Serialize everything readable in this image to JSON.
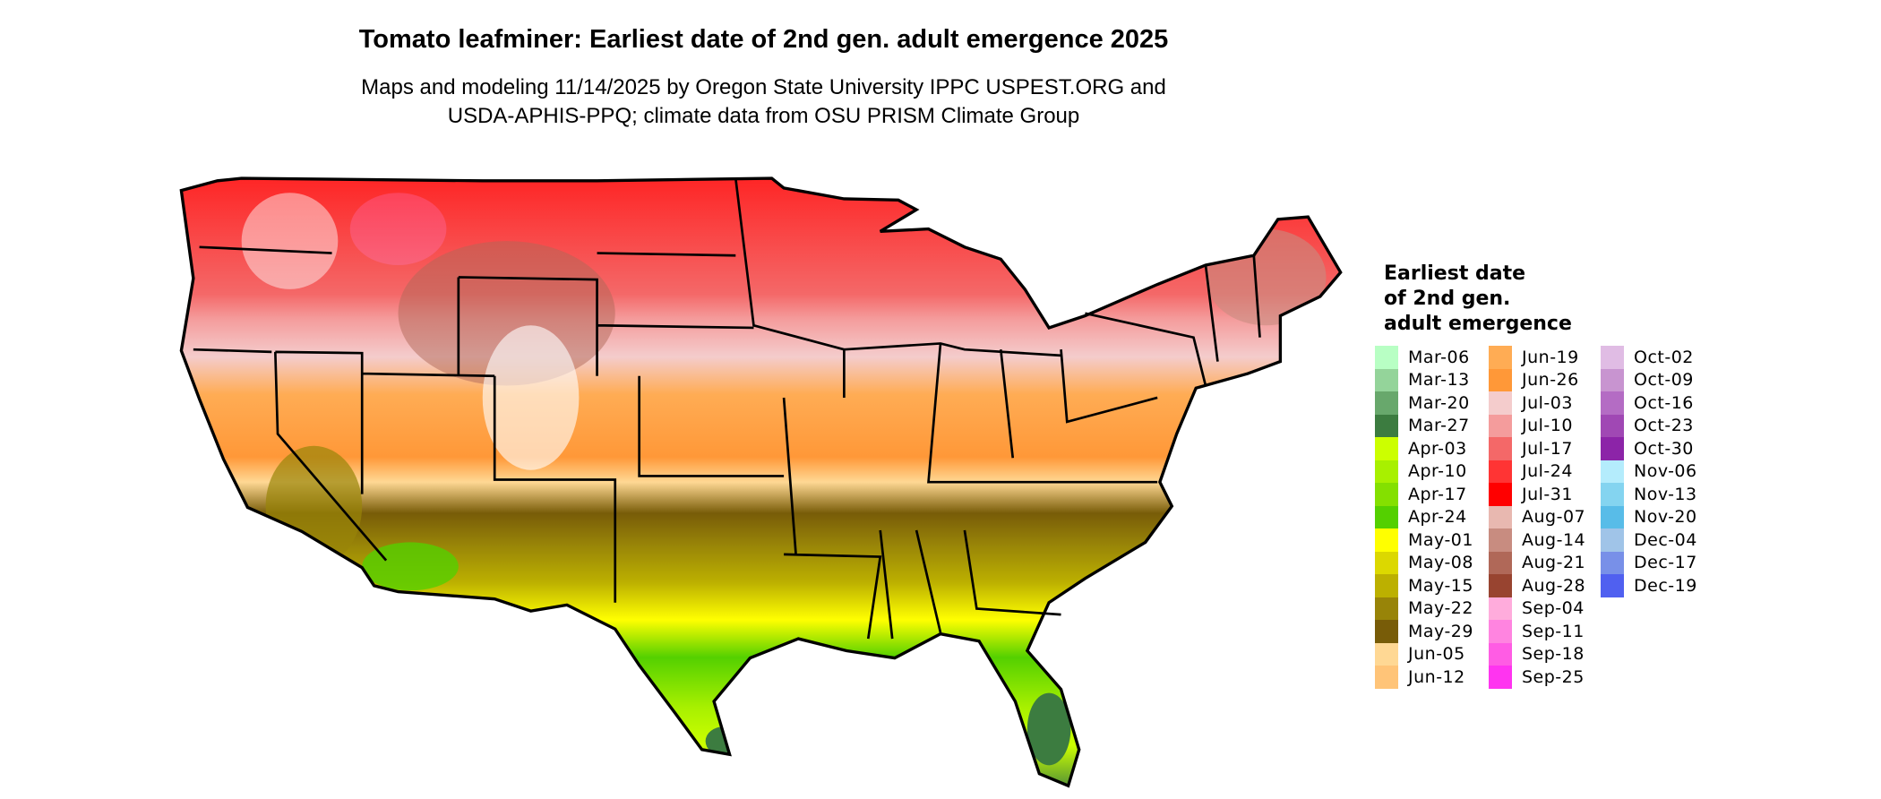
{
  "title": "Tomato leafminer: Earliest date of 2nd gen. adult emergence 2025",
  "subtitle_line1": "Maps and modeling 11/14/2025 by Oregon State University IPPC USPEST.ORG and",
  "subtitle_line2": "USDA-APHIS-PPQ; climate data from OSU PRISM Climate Group",
  "legend": {
    "title_lines": [
      "Earliest date",
      "of 2nd gen.",
      "adult emergence"
    ],
    "columns": [
      [
        {
          "label": "Mar-06",
          "color": "#b8ffc4"
        },
        {
          "label": "Mar-13",
          "color": "#94d49a"
        },
        {
          "label": "Mar-20",
          "color": "#68a86c"
        },
        {
          "label": "Mar-27",
          "color": "#3c7c40"
        },
        {
          "label": "Apr-03",
          "color": "#ccff00"
        },
        {
          "label": "Apr-10",
          "color": "#a8f000"
        },
        {
          "label": "Apr-17",
          "color": "#84e000"
        },
        {
          "label": "Apr-24",
          "color": "#54d000"
        },
        {
          "label": "May-01",
          "color": "#ffff00"
        },
        {
          "label": "May-08",
          "color": "#dcd800"
        },
        {
          "label": "May-15",
          "color": "#bcb000"
        },
        {
          "label": "May-22",
          "color": "#988408"
        },
        {
          "label": "May-29",
          "color": "#785c08"
        },
        {
          "label": "Jun-05",
          "color": "#ffd894"
        },
        {
          "label": "Jun-12",
          "color": "#ffc478"
        }
      ],
      [
        {
          "label": "Jun-19",
          "color": "#ffac54"
        },
        {
          "label": "Jun-26",
          "color": "#ff9838"
        },
        {
          "label": "Jul-03",
          "color": "#f4cccc"
        },
        {
          "label": "Jul-10",
          "color": "#f49c9c"
        },
        {
          "label": "Jul-17",
          "color": "#f46868"
        },
        {
          "label": "Jul-24",
          "color": "#ff3434"
        },
        {
          "label": "Jul-31",
          "color": "#ff0000"
        },
        {
          "label": "Aug-07",
          "color": "#e8b8b0"
        },
        {
          "label": "Aug-14",
          "color": "#c88c80"
        },
        {
          "label": "Aug-21",
          "color": "#b06858"
        },
        {
          "label": "Aug-28",
          "color": "#984430"
        },
        {
          "label": "Sep-04",
          "color": "#ffacdc"
        },
        {
          "label": "Sep-11",
          "color": "#ff84e0"
        },
        {
          "label": "Sep-18",
          "color": "#ff5ce4"
        },
        {
          "label": "Sep-25",
          "color": "#ff34f0"
        }
      ],
      [
        {
          "label": "Oct-02",
          "color": "#e0bce4"
        },
        {
          "label": "Oct-09",
          "color": "#c894d0"
        },
        {
          "label": "Oct-16",
          "color": "#b46cc4"
        },
        {
          "label": "Oct-23",
          "color": "#a048b4"
        },
        {
          "label": "Oct-30",
          "color": "#8c24a8"
        },
        {
          "label": "Nov-06",
          "color": "#b4ecfc"
        },
        {
          "label": "Nov-13",
          "color": "#84d4f0"
        },
        {
          "label": "Nov-20",
          "color": "#58bce8"
        },
        {
          "label": "Dec-04",
          "color": "#a0c4e8"
        },
        {
          "label": "Dec-17",
          "color": "#7890e8"
        },
        {
          "label": "Dec-19",
          "color": "#5060f0"
        }
      ]
    ]
  }
}
